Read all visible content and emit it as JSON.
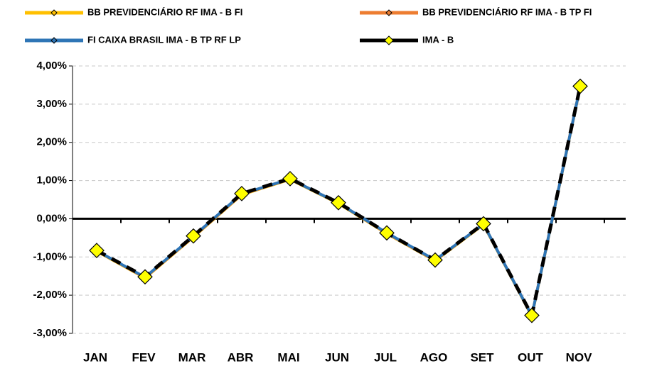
{
  "chart_data": {
    "type": "line",
    "categories": [
      "JAN",
      "FEV",
      "MAR",
      "ABR",
      "MAI",
      "JUN",
      "JUL",
      "AGO",
      "SET",
      "OUT",
      "NOV"
    ],
    "series": [
      {
        "name": "BB PREVIDENCIÁRIO RF IMA - B FI",
        "color": "#ffc000",
        "values": [
          -0.85,
          -1.55,
          -0.48,
          0.63,
          1.03,
          0.4,
          -0.39,
          -1.1,
          -0.15,
          -2.55,
          3.45
        ]
      },
      {
        "name": "BB PREVIDENCIÁRIO RF IMA - B TP FI",
        "color": "#ed7d31",
        "values": [
          -0.84,
          -1.54,
          -0.47,
          0.64,
          1.04,
          0.41,
          -0.38,
          -1.09,
          -0.14,
          -2.54,
          3.46
        ]
      },
      {
        "name": "FI CAIXA BRASIL IMA - B TP RF LP",
        "color": "#2e75b6",
        "values": [
          -0.84,
          -1.53,
          -0.46,
          0.65,
          1.04,
          0.41,
          -0.37,
          -1.08,
          -0.14,
          -2.54,
          3.46
        ]
      },
      {
        "name": "IMA - B",
        "color": "#000000",
        "values": [
          -0.83,
          -1.52,
          -0.45,
          0.66,
          1.05,
          0.42,
          -0.37,
          -1.08,
          -0.13,
          -2.53,
          3.47
        ]
      }
    ],
    "ylim": [
      -3,
      4
    ],
    "yticks": [
      {
        "value": -3,
        "label": "-3,00%"
      },
      {
        "value": -2,
        "label": "-2,00%"
      },
      {
        "value": -1,
        "label": "-1,00%"
      },
      {
        "value": 0,
        "label": "0,00%"
      },
      {
        "value": 1,
        "label": "1,00%"
      },
      {
        "value": 2,
        "label": "2,00%"
      },
      {
        "value": 3,
        "label": "3,00%"
      },
      {
        "value": 4,
        "label": "4,00%"
      }
    ],
    "grid": true,
    "legend": "top"
  }
}
